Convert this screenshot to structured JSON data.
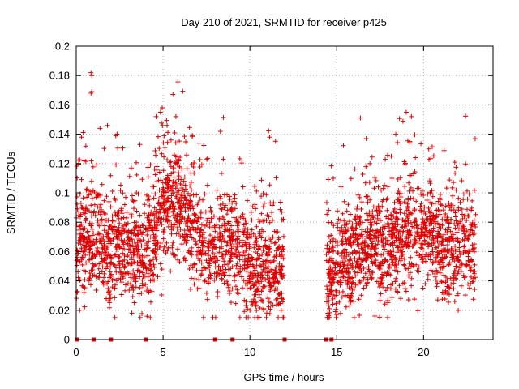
{
  "chart_data": {
    "type": "scatter",
    "title": "Day 210 of 2021, SRMTID for receiver p425",
    "xlabel": "GPS time / hours",
    "ylabel": "SRMTID / TECUs",
    "xlim": [
      0,
      24
    ],
    "ylim": [
      0,
      0.2
    ],
    "x_ticks": [
      0,
      5,
      10,
      15,
      20
    ],
    "x_tick_labels": [
      "0",
      "5",
      "10",
      "15",
      "20"
    ],
    "y_ticks": [
      0,
      0.02,
      0.04,
      0.06,
      0.08,
      0.1,
      0.12,
      0.14,
      0.16,
      0.18,
      0.2
    ],
    "y_tick_labels": [
      "0",
      "0.02",
      "0.04",
      "0.06",
      "0.08",
      "0.1",
      "0.12",
      "0.14",
      "0.16",
      "0.18",
      "0.2"
    ],
    "grid": true,
    "marker": "+",
    "color": "#e00000",
    "series": [
      {
        "name": "SRMTID",
        "segments": [
          {
            "x_start": 0.0,
            "x_end": 11.95,
            "hourly_trend": [
              0.065,
              0.072,
              0.06,
              0.068,
              0.055,
              0.09,
              0.095,
              0.07,
              0.06,
              0.065,
              0.045,
              0.05,
              0.045
            ],
            "spread": 0.018
          },
          {
            "x_start": 14.4,
            "x_end": 23.0,
            "hourly_trend": [
              0.04,
              0.055,
              0.06,
              0.07,
              0.065,
              0.07,
              0.075,
              0.072,
              0.06,
              0.065,
              0.06
            ],
            "spread": 0.018
          }
        ],
        "highlights": [
          {
            "x": 0.85,
            "y": 0.182
          },
          {
            "x": 0.9,
            "y": 0.18
          },
          {
            "x": 0.85,
            "y": 0.168
          },
          {
            "x": 0.9,
            "y": 0.169
          },
          {
            "x": 4.95,
            "y": 0.158
          },
          {
            "x": 4.85,
            "y": 0.155
          },
          {
            "x": 4.6,
            "y": 0.152
          },
          {
            "x": 8.3,
            "y": 0.142
          },
          {
            "x": 0.3,
            "y": 0.138
          },
          {
            "x": 1.8,
            "y": 0.146
          },
          {
            "x": 19.0,
            "y": 0.155
          },
          {
            "x": 19.3,
            "y": 0.152
          },
          {
            "x": 16.7,
            "y": 0.137
          },
          {
            "x": 18.4,
            "y": 0.14
          },
          {
            "x": 20.3,
            "y": 0.13
          },
          {
            "x": 3.2,
            "y": 0.018
          },
          {
            "x": 10.0,
            "y": 0.02
          },
          {
            "x": 17.2,
            "y": 0.016
          },
          {
            "x": 0.2,
            "y": 0.02
          },
          {
            "x": 11.2,
            "y": 0.025
          },
          {
            "x": 14.5,
            "y": 0.015
          }
        ]
      },
      {
        "name": "markers_at_zero",
        "x": [
          0.05,
          1.0,
          2.0,
          4.0,
          8.0,
          9.0,
          12.0,
          14.4,
          14.7
        ],
        "y": [
          0,
          0,
          0,
          0,
          0,
          0,
          0,
          0,
          0
        ]
      }
    ]
  }
}
